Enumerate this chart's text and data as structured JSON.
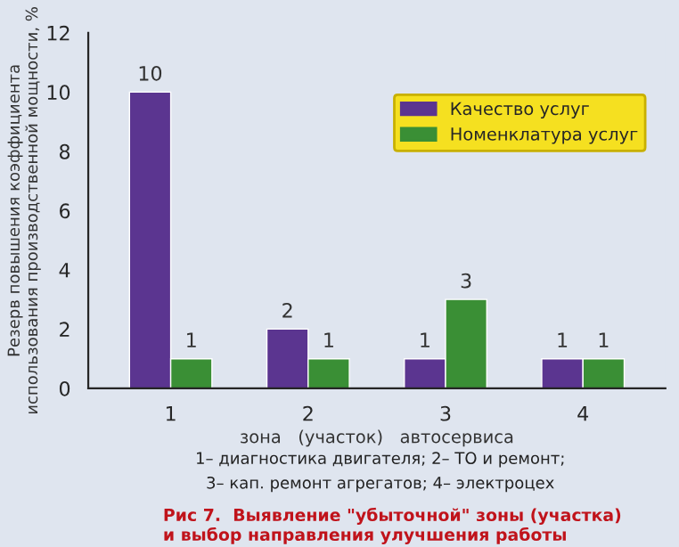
{
  "chart_data": {
    "type": "bar",
    "title": "Рис 7.  Выявление \"убыточной\" зоны (участка)\nи выбор направления улучшения работы",
    "xlabel": "зона   (участок)   автосервиса",
    "ylabel": "Резерв повышения коэффициента\nиспользования производственной мощности, %",
    "categories": [
      "1",
      "2",
      "3",
      "4"
    ],
    "series": [
      {
        "name": "Качество услуг",
        "color": "#5b3590",
        "values": [
          10,
          2,
          1,
          1
        ]
      },
      {
        "name": "Номенклатура услуг",
        "color": "#3a8f35",
        "values": [
          1,
          1,
          3,
          1
        ]
      }
    ],
    "ylim": [
      0,
      12
    ],
    "yticks": [
      0,
      2,
      4,
      6,
      8,
      10,
      12
    ],
    "data_labels": true,
    "grid": false,
    "legend": "top right",
    "annotations": [
      "1– диагностика двигателя; 2– ТО и ремонт;",
      "3– кап. ремонт агрегатов; 4– электроцех"
    ]
  }
}
